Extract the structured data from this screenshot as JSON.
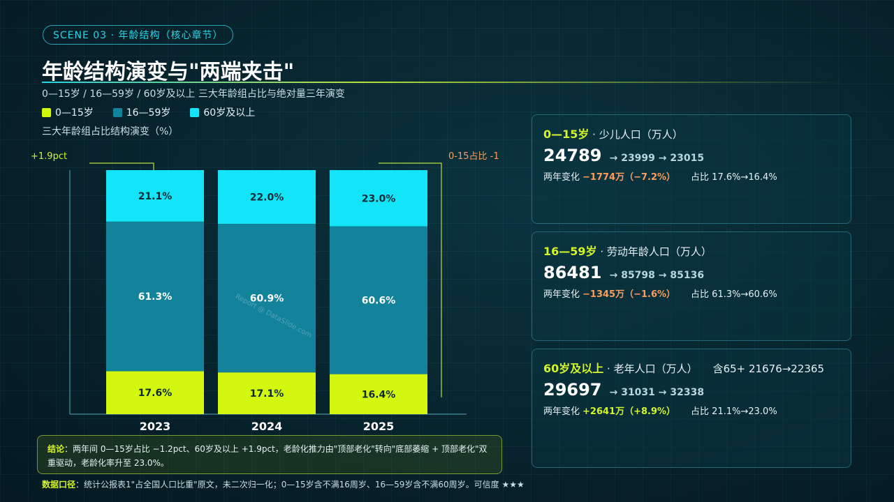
{
  "scene_badge": "SCENE 03 · 年龄结构（核心章节）",
  "title": "年龄结构演变与\"两端夹击\"",
  "subtitle": "0—15岁 / 16—59岁 / 60岁及以上 三大年龄组占比与绝对量三年演变",
  "legend": [
    {
      "label": "0—15岁",
      "color": "#d4f70f"
    },
    {
      "label": "16—59岁",
      "color": "#13839c"
    },
    {
      "label": "60岁及以上",
      "color": "#14e4f7"
    }
  ],
  "chart_heading": "三大年龄组占比结构演变（%）",
  "chart_data": {
    "type": "bar",
    "stacked": true,
    "categories": [
      "2023",
      "2024",
      "2025"
    ],
    "series": [
      {
        "name": "0—15岁",
        "values": [
          17.6,
          17.1,
          16.4
        ],
        "labels": [
          "17.6%",
          "17.1%",
          "16.4%"
        ],
        "color": "#d4f70f"
      },
      {
        "name": "16—59岁",
        "values": [
          61.3,
          60.9,
          60.6
        ],
        "labels": [
          "61.3%",
          "60.9%",
          "60.6%"
        ],
        "color": "#13839c"
      },
      {
        "name": "60岁及以上",
        "values": [
          21.1,
          22.0,
          23.0
        ],
        "labels": [
          "21.1%",
          "22.0%",
          "23.0%"
        ],
        "color": "#14e4f7"
      }
    ],
    "ylim": [
      0,
      100
    ],
    "annotations": [
      {
        "text": "+1.9pct",
        "color": "#d4f52a"
      },
      {
        "text": "0-15占比 -1",
        "color": "#ff9c5a"
      }
    ]
  },
  "cards": [
    {
      "highlight": "0—15岁",
      "title_rest": " · 少儿人口（万人）",
      "extra": "",
      "big": "24789",
      "trend": "→ 23999 → 23015",
      "change_label": "两年变化",
      "change_value": "−1774万（−7.2%）",
      "change_type": "neg",
      "share": "占比 17.6%→16.4%"
    },
    {
      "highlight": "16—59岁",
      "title_rest": " · 劳动年龄人口（万人）",
      "extra": "",
      "big": "86481",
      "trend": "→ 85798 → 85136",
      "change_label": "两年变化",
      "change_value": "−1345万（−1.6%）",
      "change_type": "neg",
      "share": "占比 61.3%→60.6%"
    },
    {
      "highlight": "60岁及以上",
      "title_rest": " · 老年人口（万人）",
      "extra": "含65+ 21676→22365",
      "big": "29697",
      "trend": "→ 31031 → 32338",
      "change_label": "两年变化",
      "change_value": "+2641万（+8.9%）",
      "change_type": "pos",
      "share": "占比 21.1%→23.0%"
    }
  ],
  "conclusion": {
    "label": "结论",
    "text": "：两年间 0—15岁占比 −1.2pct、60岁及以上 +1.9pct，老龄化推力由\"顶部老化\"转向\"底部萎缩 + 顶部老化\"双重驱动，老龄化率升至 23.0%。"
  },
  "data_note": {
    "label": "数据口径",
    "text": "：统计公报表1\"占全国人口比重\"原文，未二次归一化；0—15岁含不满16周岁、16—59岁含不满60周岁。可信度 ★★★"
  },
  "watermark": "Report @ DataSlide.com"
}
